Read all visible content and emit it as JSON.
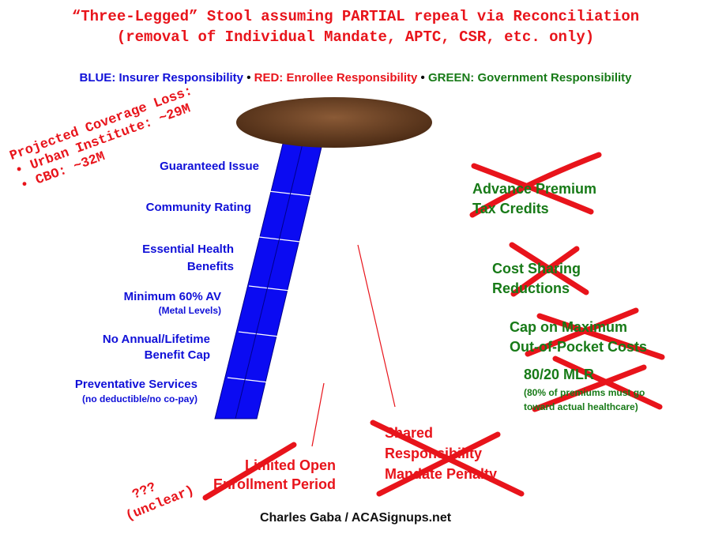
{
  "title": {
    "line1": "“Three-Legged” Stool assuming PARTIAL repeal via Reconciliation",
    "line2": "(removal of Individual Mandate, APTC, CSR, etc. only)"
  },
  "legend": {
    "blue": "BLUE: Insurer Responsibility",
    "sep": "•",
    "red": "RED: Enrollee Responsibility",
    "green": "GREEN: Government Responsibility"
  },
  "colors": {
    "blue": "#1010d8",
    "red": "#e8141b",
    "green": "#177a17",
    "seat": "#6b3f22"
  },
  "coverage_loss": {
    "line1": "Projected Coverage Loss:",
    "line2": "• Urban Institute: ~29M",
    "line3": "• CBO: ~32M"
  },
  "blue_items": [
    "Guaranteed Issue",
    "Community Rating",
    "Essential Health",
    "Benefits",
    "Minimum 60% AV",
    "(Metal Levels)",
    "No Annual/Lifetime",
    "Benefit Cap",
    "Preventative Services",
    "(no deductible/no co-pay)"
  ],
  "green_items": {
    "aptc": [
      "Advance Premium",
      "Tax Credits"
    ],
    "csr": [
      "Cost Sharing",
      "Reductions"
    ],
    "oop": [
      "Cap on Maximum",
      "Out-of-Pocket Costs"
    ],
    "mlr": "80/20 MLR",
    "mlr_sub": [
      "(80% of premiums must go",
      "toward actual healthcare)"
    ]
  },
  "red_items": {
    "oe": [
      "Limited Open",
      "Enrollment Period"
    ],
    "mandate": [
      "Shared",
      "Responsibility",
      "Mandate Penalty"
    ]
  },
  "unclear": {
    "line1": "???",
    "line2": "(unclear)"
  },
  "credit": "Charles Gaba / ACASignups.net"
}
